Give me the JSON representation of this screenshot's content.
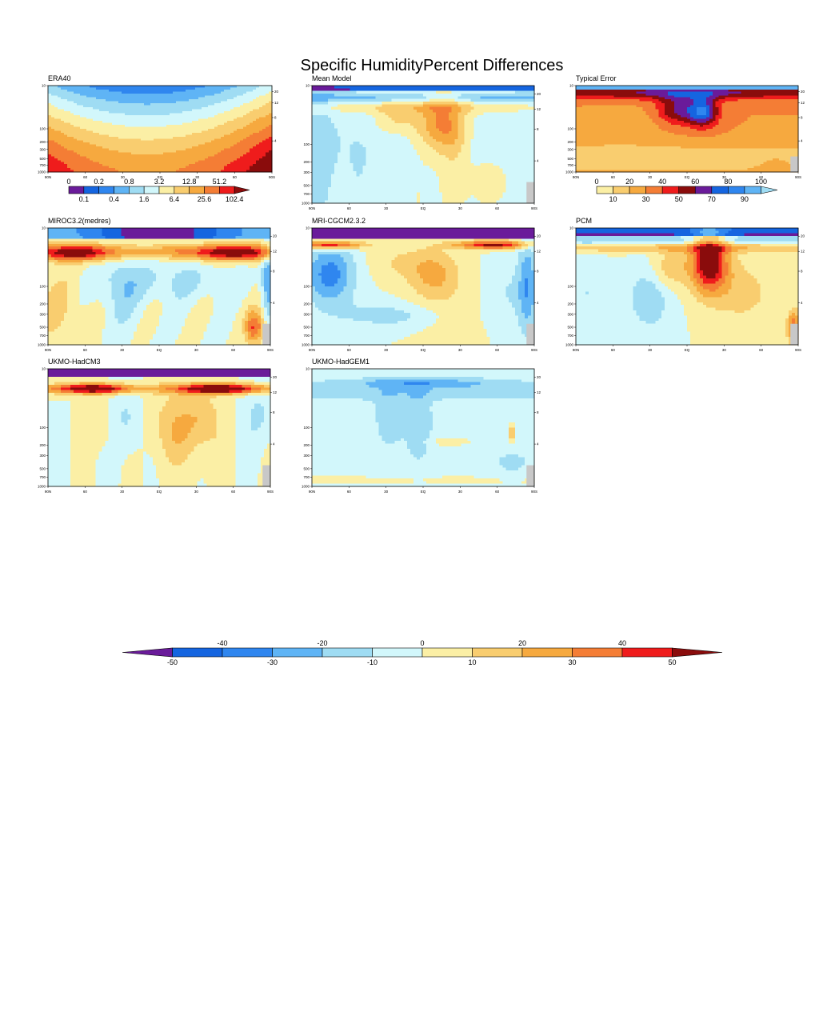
{
  "page": {
    "title": "Specific HumidityPercent Differences"
  },
  "palettes": {
    "diff": [
      "#6a1b9a",
      "#1565e0",
      "#2f86ef",
      "#5fb4f5",
      "#9fdcf3",
      "#d2f7fb",
      "#fbefa5",
      "#f9cd6f",
      "#f6a93f",
      "#f47d35",
      "#ef1c1c",
      "#8a0c0c"
    ],
    "era": [
      "#6a1b9a",
      "#1565e0",
      "#2f86ef",
      "#5fb4f5",
      "#9fdcf3",
      "#d2f7fb",
      "#fbefa5",
      "#f9cd6f",
      "#f6a93f",
      "#f47d35",
      "#ef1c1c",
      "#8a0c0c"
    ],
    "err": [
      "#fbefa5",
      "#f9cd6f",
      "#f6a93f",
      "#f47d35",
      "#ef1c1c",
      "#8a0c0c",
      "#6a1b9a",
      "#1565e0",
      "#2f86ef",
      "#5fb4f5",
      "#9fdcf3"
    ],
    "missing": "#c8c8c8"
  },
  "axes": {
    "lat_labels": [
      "90N",
      "60",
      "30",
      "EQ",
      "30",
      "60",
      "90S"
    ],
    "pressure_labels": [
      "10",
      "100",
      "200",
      "300",
      "500",
      "700",
      "1000"
    ],
    "height_labels": [
      "20",
      "12",
      "8",
      "4"
    ]
  },
  "panels": [
    {
      "id": "era40",
      "title": "ERA40",
      "kind": "era"
    },
    {
      "id": "mean",
      "title": "Mean Model",
      "kind": "mean"
    },
    {
      "id": "error",
      "title": "Typical Error",
      "kind": "error"
    },
    {
      "id": "miroc",
      "title": "MIROC3.2(medres)",
      "kind": "miroc"
    },
    {
      "id": "mri",
      "title": "MRI-CGCM2.3.2",
      "kind": "mri"
    },
    {
      "id": "pcm",
      "title": "PCM",
      "kind": "pcm"
    },
    {
      "id": "hadcm3",
      "title": "UKMO-HadCM3",
      "kind": "hadcm3"
    },
    {
      "id": "hadgem1",
      "title": "UKMO-HadGEM1",
      "kind": "hadgem1"
    }
  ],
  "colorbars": {
    "era": {
      "top_labels": [
        "0",
        "0.2",
        "0.8",
        "3.2",
        "12.8",
        "51.2"
      ],
      "bottom_labels": [
        "0.1",
        "0.4",
        "1.6",
        "6.4",
        "25.6",
        "102.4"
      ]
    },
    "error": {
      "top_labels": [
        "0",
        "20",
        "40",
        "60",
        "80",
        "100"
      ],
      "bottom_labels": [
        "10",
        "30",
        "50",
        "70",
        "90"
      ]
    },
    "main": {
      "top_labels": [
        "-40",
        "-20",
        "0",
        "20",
        "40"
      ],
      "bottom_labels": [
        "-50",
        "-30",
        "-10",
        "10",
        "30",
        "50"
      ]
    }
  },
  "chart_data": {
    "type": "heatmap",
    "title": "Specific HumidityPercent Differences",
    "x_axis": "latitude, 90N to 90S",
    "y_axis": "pressure (hPa), 10 to 1000",
    "right_axis": "height (km): 20, 12, 8, 4",
    "panels": [
      "ERA40",
      "Mean Model",
      "Typical Error",
      "MIROC3.2(medres)",
      "MRI-CGCM2.3.2",
      "PCM",
      "UKMO-HadCM3",
      "UKMO-HadGEM1"
    ],
    "difference_levels": [
      -50,
      -40,
      -30,
      -20,
      -10,
      0,
      10,
      20,
      30,
      40,
      50
    ],
    "era40_levels": [
      0,
      0.1,
      0.2,
      0.4,
      0.8,
      1.6,
      3.2,
      6.4,
      12.8,
      25.6,
      51.2,
      102.4
    ],
    "typical_error_levels": [
      0,
      10,
      20,
      30,
      40,
      50,
      60,
      70,
      80,
      90,
      100
    ]
  }
}
